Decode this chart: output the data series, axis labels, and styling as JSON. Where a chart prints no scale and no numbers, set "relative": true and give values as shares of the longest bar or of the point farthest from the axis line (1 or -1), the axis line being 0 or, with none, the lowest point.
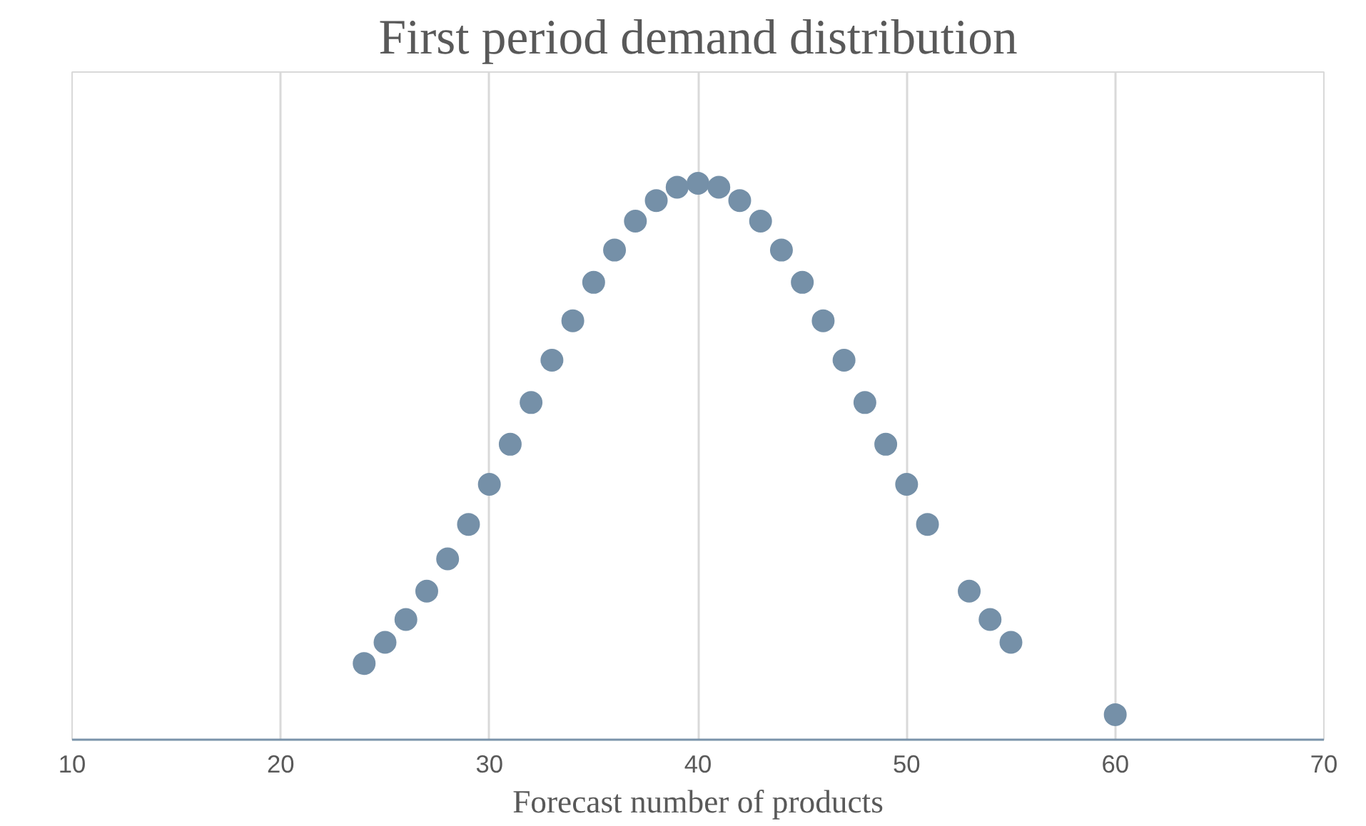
{
  "chart_data": {
    "type": "scatter",
    "title": "First period demand distribution",
    "xlabel": "Forecast number of products",
    "relative": true,
    "marker": "circle",
    "grid": "x",
    "tick_labels": "x",
    "xlim": [
      10,
      70
    ],
    "xticks": [
      10,
      20,
      30,
      40,
      50,
      60,
      70
    ],
    "x": [
      24,
      25,
      26,
      27,
      28,
      29,
      30,
      31,
      32,
      33,
      34,
      35,
      36,
      37,
      38,
      39,
      40,
      41,
      42,
      43,
      44,
      45,
      46,
      47,
      48,
      49,
      50,
      51,
      53,
      54,
      55,
      60
    ],
    "series": [
      {
        "color": "#7590a8",
        "values": [
          0.137,
          0.175,
          0.216,
          0.267,
          0.325,
          0.387,
          0.459,
          0.531,
          0.606,
          0.682,
          0.753,
          0.822,
          0.88,
          0.932,
          0.969,
          0.993,
          1.0,
          0.993,
          0.969,
          0.932,
          0.88,
          0.822,
          0.753,
          0.682,
          0.606,
          0.531,
          0.459,
          0.387,
          0.267,
          0.216,
          0.175,
          0.045
        ]
      }
    ]
  }
}
